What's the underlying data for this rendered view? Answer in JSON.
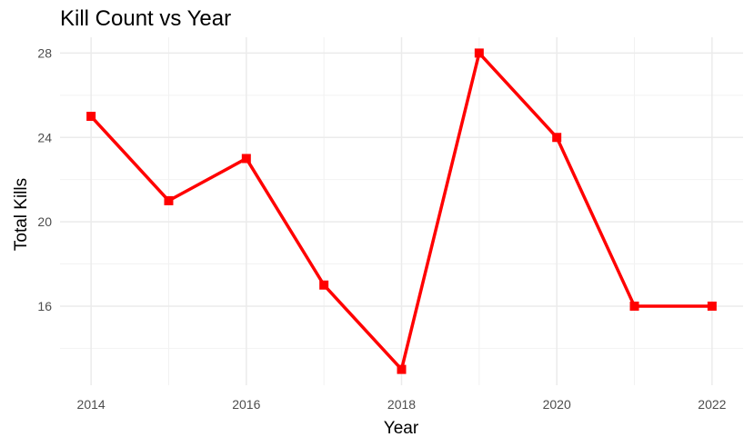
{
  "chart_data": {
    "type": "line",
    "title": "Kill Count vs Year",
    "xlabel": "Year",
    "ylabel": "Total Kills",
    "x": [
      2014,
      2015,
      2016,
      2017,
      2018,
      2019,
      2020,
      2021,
      2022
    ],
    "series": [
      {
        "values": [
          25,
          21,
          23,
          17,
          13,
          28,
          24,
          16,
          16
        ],
        "color": "#ff0000"
      }
    ],
    "xticks": [
      "2014",
      "2016",
      "2018",
      "2020",
      "2022"
    ],
    "yticks": [
      "16",
      "20",
      "24",
      "28"
    ],
    "xlim": [
      2013.6,
      2022.4
    ],
    "ylim": [
      12.25,
      28.75
    ],
    "grid": true,
    "legend": "none"
  }
}
